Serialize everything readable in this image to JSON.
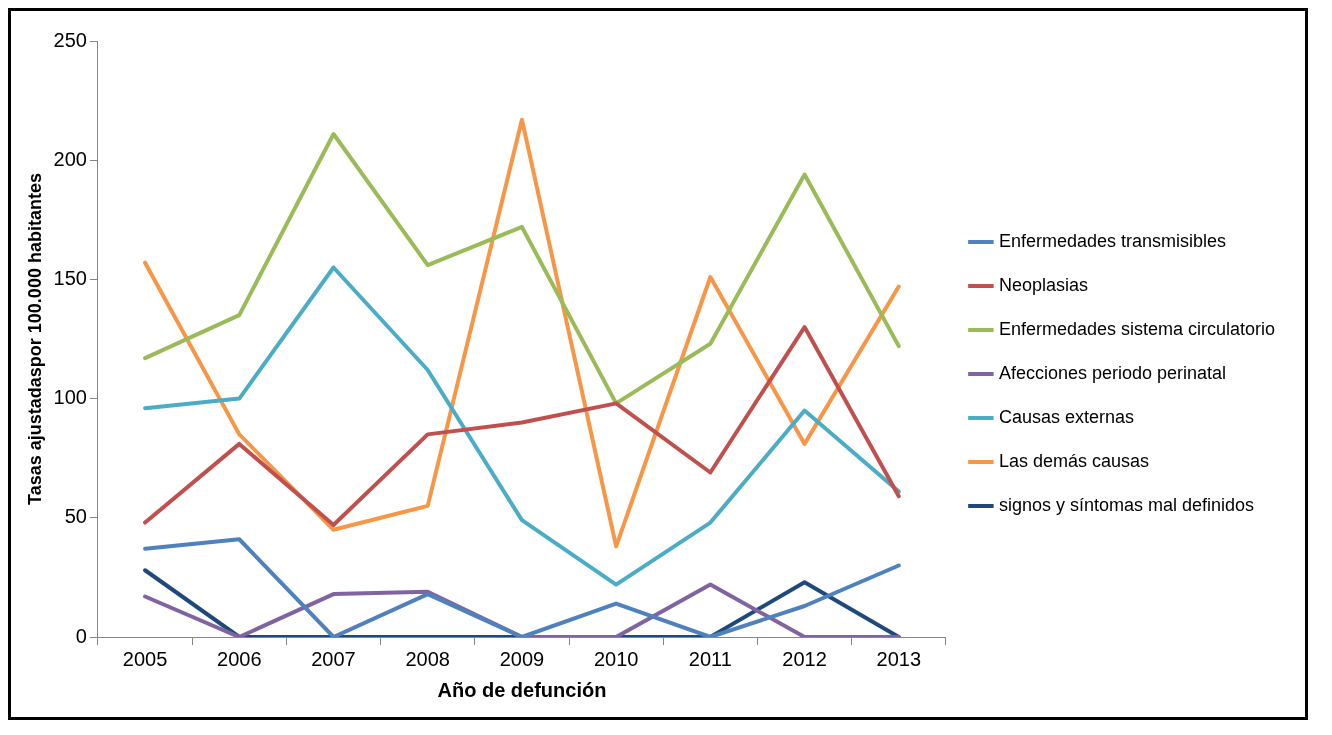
{
  "chart_data": {
    "type": "line",
    "xlabel": "Año de defunción",
    "ylabel": "Tasas ajustadaspor 100.000 habitantes",
    "categories": [
      "2005",
      "2006",
      "2007",
      "2008",
      "2009",
      "2010",
      "2011",
      "2012",
      "2013"
    ],
    "ylim": [
      0,
      250
    ],
    "yticks": [
      0,
      50,
      100,
      150,
      200,
      250
    ],
    "grid": false,
    "legend": "right",
    "marker": "none",
    "line_style": "solid",
    "series": [
      {
        "name": "Enfermedades transmisibles",
        "color": "#4f81bd",
        "values": [
          37,
          41,
          0,
          18,
          0,
          14,
          0,
          13,
          30
        ]
      },
      {
        "name": "Neoplasias",
        "color": "#c0504d",
        "values": [
          48,
          81,
          47,
          85,
          90,
          98,
          69,
          130,
          59
        ]
      },
      {
        "name": "Enfermedades sistema circulatorio",
        "color": "#9bbb59",
        "values": [
          117,
          135,
          211,
          156,
          172,
          98,
          123,
          194,
          122
        ]
      },
      {
        "name": "Afecciones periodo perinatal",
        "color": "#8064a2",
        "values": [
          17,
          0,
          18,
          19,
          0,
          0,
          22,
          0,
          0
        ]
      },
      {
        "name": "Causas externas",
        "color": "#4bacc6",
        "values": [
          96,
          100,
          155,
          112,
          49,
          22,
          48,
          95,
          61
        ]
      },
      {
        "name": "Las demás causas",
        "color": "#f79646",
        "values": [
          157,
          85,
          45,
          55,
          217,
          38,
          151,
          81,
          147
        ]
      },
      {
        "name": "signos y síntomas mal definidos",
        "color": "#1f497d",
        "values": [
          28,
          0,
          0,
          0,
          0,
          0,
          0,
          23,
          0
        ]
      }
    ]
  }
}
